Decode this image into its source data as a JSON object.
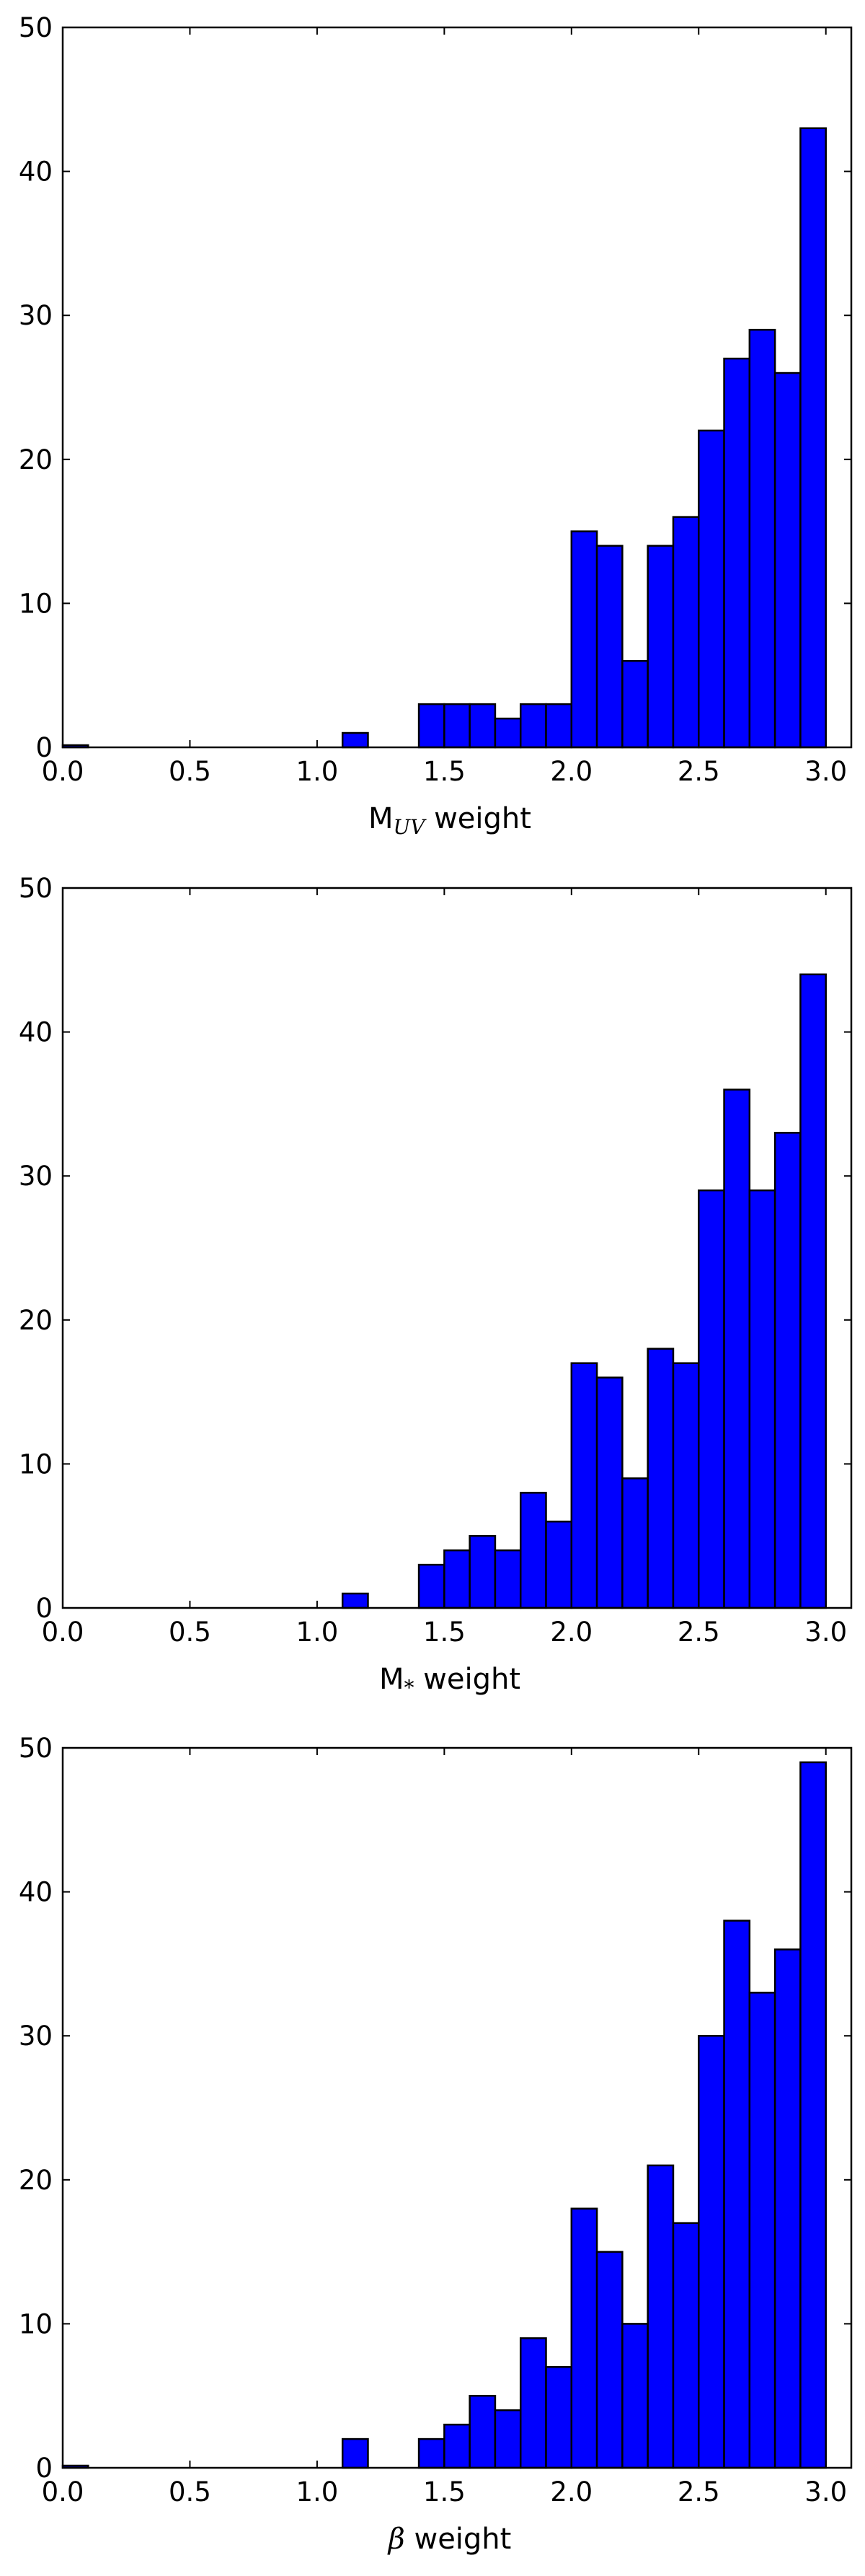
{
  "chart_data": [
    {
      "type": "bar",
      "xlabel": {
        "main": "M",
        "sub": "UV",
        "suffix": " weight"
      },
      "xlim": [
        0.0,
        3.1
      ],
      "ylim": [
        0,
        50
      ],
      "xticks": [
        "0.0",
        "0.5",
        "1.0",
        "1.5",
        "2.0",
        "2.5",
        "3.0"
      ],
      "yticks": [
        "0",
        "10",
        "20",
        "30",
        "40",
        "50"
      ],
      "bin_width": 0.1,
      "bin_edges": [
        0.0,
        1.1,
        1.4,
        1.5,
        1.6,
        1.7,
        1.8,
        1.9,
        2.0,
        2.1,
        2.2,
        2.3,
        2.4,
        2.5,
        2.6,
        2.7,
        2.8,
        2.9
      ],
      "values": [
        0.15,
        1,
        3,
        3,
        3,
        2,
        3,
        3,
        15,
        14,
        6,
        14,
        16,
        22,
        27,
        29,
        26,
        43
      ],
      "bar_color": "#0000ff"
    },
    {
      "type": "bar",
      "xlabel": {
        "main": "M",
        "sub": "*",
        "suffix": " weight"
      },
      "xlim": [
        0.0,
        3.1
      ],
      "ylim": [
        0,
        50
      ],
      "xticks": [
        "0.0",
        "0.5",
        "1.0",
        "1.5",
        "2.0",
        "2.5",
        "3.0"
      ],
      "yticks": [
        "0",
        "10",
        "20",
        "30",
        "40",
        "50"
      ],
      "bin_width": 0.1,
      "bin_edges": [
        1.1,
        1.4,
        1.5,
        1.6,
        1.7,
        1.8,
        1.9,
        2.0,
        2.1,
        2.2,
        2.3,
        2.4,
        2.5,
        2.6,
        2.7,
        2.8,
        2.9
      ],
      "values": [
        1,
        3,
        4,
        5,
        4,
        8,
        6,
        17,
        16,
        9,
        18,
        17,
        29,
        36,
        29,
        33,
        44
      ],
      "bar_color": "#0000ff"
    },
    {
      "type": "bar",
      "xlabel": {
        "main": "β",
        "sub": "",
        "suffix": " weight"
      },
      "xlim": [
        0.0,
        3.1
      ],
      "ylim": [
        0,
        50
      ],
      "xticks": [
        "0.0",
        "0.5",
        "1.0",
        "1.5",
        "2.0",
        "2.5",
        "3.0"
      ],
      "yticks": [
        "0",
        "10",
        "20",
        "30",
        "40",
        "50"
      ],
      "bin_width": 0.1,
      "bin_edges": [
        0.0,
        1.1,
        1.4,
        1.5,
        1.6,
        1.7,
        1.8,
        1.9,
        2.0,
        2.1,
        2.2,
        2.3,
        2.4,
        2.5,
        2.6,
        2.7,
        2.8,
        2.9
      ],
      "values": [
        0.15,
        2,
        2,
        3,
        5,
        4,
        9,
        7,
        18,
        15,
        10,
        21,
        17,
        30,
        38,
        33,
        36,
        49
      ],
      "bar_color": "#0000ff"
    }
  ]
}
